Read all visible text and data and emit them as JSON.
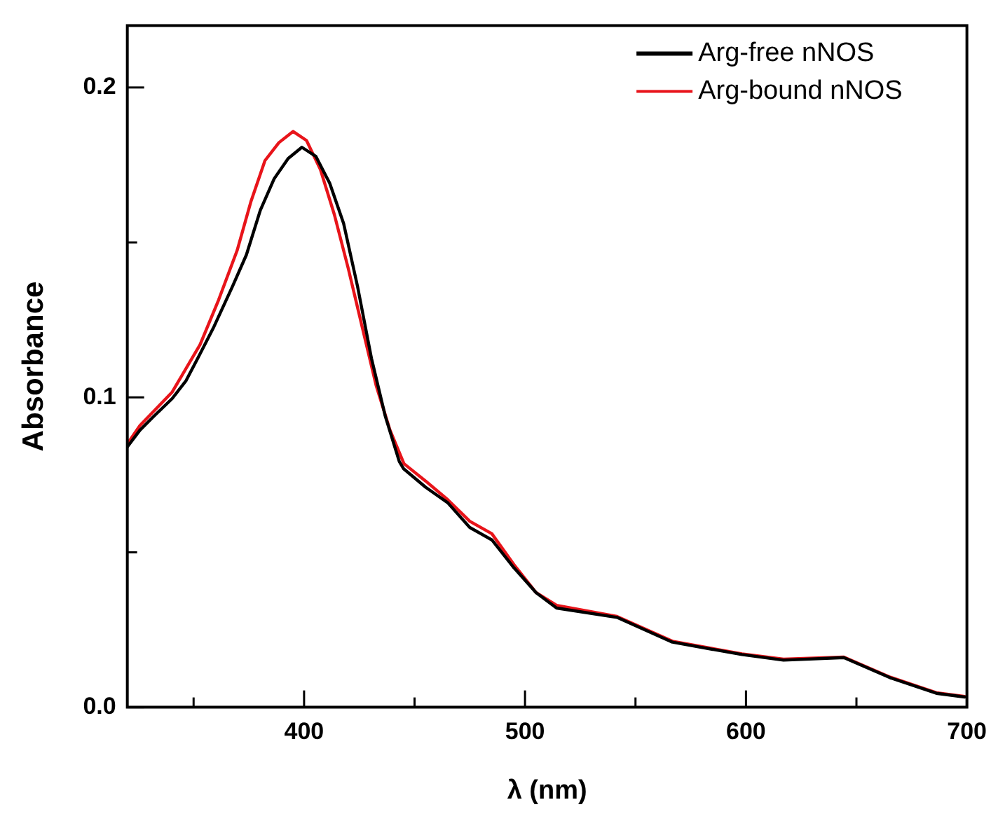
{
  "chart_data": {
    "type": "line",
    "xlabel": "λ (nm)",
    "ylabel": "Absorbance",
    "xlim": [
      320,
      700
    ],
    "xticks": [
      {
        "value": 350,
        "label": null
      },
      400,
      {
        "value": 450,
        "label": null
      },
      500,
      {
        "value": 550,
        "label": null
      },
      600,
      {
        "value": 650,
        "label": null
      },
      700
    ],
    "ylim": [
      0,
      0.22
    ],
    "yticks": [
      "0.0",
      {
        "value": 0.05,
        "label": null
      },
      {
        "value": 0.1,
        "label": "0.1"
      },
      {
        "value": 0.15,
        "label": null
      },
      {
        "value": 0.2,
        "label": "0.2"
      }
    ],
    "legend": "top right",
    "grid": false,
    "marker": "none",
    "line_style": "solid",
    "series": [
      {
        "name": "Arg-free nNOS",
        "color": "#000000",
        "x": [
          320,
          325.7,
          332,
          340.3,
          346.6,
          352.9,
          359.2,
          367.6,
          373.9,
          380.2,
          386.5,
          392.8,
          399,
          405.3,
          411.6,
          417.9,
          424.2,
          430.5,
          436.8,
          443.1,
          445,
          455,
          465,
          475,
          485,
          495,
          505,
          514.3,
          541.6,
          566.7,
          598.2,
          617,
          644.3,
          665.3,
          686.2,
          699
        ],
        "values": [
          0.084,
          0.0894,
          0.0939,
          0.0996,
          0.1054,
          0.114,
          0.1228,
          0.1358,
          0.146,
          0.1604,
          0.1706,
          0.1771,
          0.1807,
          0.1778,
          0.1691,
          0.1561,
          0.1358,
          0.1126,
          0.0938,
          0.0793,
          0.077,
          0.071,
          0.066,
          0.058,
          0.054,
          0.045,
          0.037,
          0.032,
          0.029,
          0.021,
          0.017,
          0.0152,
          0.016,
          0.0095,
          0.0045,
          0.0033
        ]
      },
      {
        "name": "Arg-bound nNOS",
        "color": "#e8141a",
        "x": [
          320,
          325.7,
          340.3,
          352.9,
          361.3,
          369.7,
          376,
          382.3,
          388.6,
          395,
          401.1,
          407.4,
          413.7,
          420,
          426.3,
          432.6,
          438.9,
          445.2,
          455,
          465,
          475,
          485,
          495,
          505,
          514.3,
          541.6,
          566.7,
          598.2,
          617,
          644.3,
          665.3,
          686.2,
          699
        ],
        "values": [
          0.085,
          0.0909,
          0.1017,
          0.117,
          0.1314,
          0.1474,
          0.1633,
          0.1764,
          0.1822,
          0.1858,
          0.1829,
          0.1735,
          0.159,
          0.1416,
          0.1227,
          0.1039,
          0.0894,
          0.0786,
          0.073,
          0.067,
          0.06,
          0.056,
          0.046,
          0.037,
          0.0329,
          0.0293,
          0.0213,
          0.0172,
          0.0155,
          0.0162,
          0.0097,
          0.0047,
          0.0035
        ]
      }
    ]
  }
}
